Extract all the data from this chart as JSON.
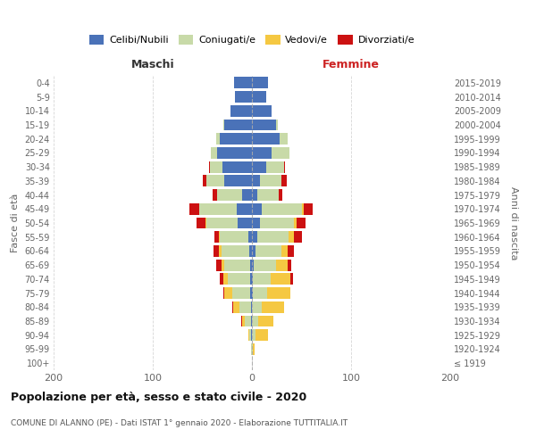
{
  "age_groups": [
    "100+",
    "95-99",
    "90-94",
    "85-89",
    "80-84",
    "75-79",
    "70-74",
    "65-69",
    "60-64",
    "55-59",
    "50-54",
    "45-49",
    "40-44",
    "35-39",
    "30-34",
    "25-29",
    "20-24",
    "15-19",
    "10-14",
    "5-9",
    "0-4"
  ],
  "birth_years": [
    "≤ 1919",
    "1920-1924",
    "1925-1929",
    "1930-1934",
    "1935-1939",
    "1940-1944",
    "1945-1949",
    "1950-1954",
    "1955-1959",
    "1960-1964",
    "1965-1969",
    "1970-1974",
    "1975-1979",
    "1980-1984",
    "1985-1989",
    "1990-1994",
    "1995-1999",
    "2000-2004",
    "2005-2009",
    "2010-2014",
    "2015-2019"
  ],
  "maschi_celibi": [
    0,
    0,
    1,
    1,
    1,
    2,
    2,
    2,
    3,
    4,
    14,
    15,
    10,
    28,
    30,
    35,
    32,
    28,
    22,
    17,
    18
  ],
  "maschi_coniugati": [
    0,
    1,
    2,
    6,
    12,
    18,
    22,
    26,
    28,
    28,
    32,
    38,
    25,
    18,
    12,
    6,
    4,
    1,
    0,
    0,
    0
  ],
  "maschi_vedovi": [
    0,
    0,
    1,
    3,
    6,
    8,
    5,
    3,
    2,
    1,
    1,
    0,
    0,
    0,
    0,
    0,
    0,
    0,
    0,
    0,
    0
  ],
  "maschi_divorziati": [
    0,
    0,
    0,
    1,
    1,
    1,
    3,
    5,
    6,
    5,
    9,
    10,
    5,
    4,
    1,
    0,
    0,
    0,
    0,
    0,
    0
  ],
  "femmine_nubili": [
    0,
    0,
    0,
    0,
    0,
    1,
    1,
    2,
    4,
    5,
    8,
    10,
    5,
    8,
    14,
    20,
    28,
    24,
    20,
    14,
    16
  ],
  "femmine_coniugate": [
    0,
    1,
    4,
    6,
    10,
    14,
    18,
    22,
    26,
    32,
    34,
    40,
    22,
    22,
    18,
    18,
    8,
    2,
    0,
    0,
    0
  ],
  "femmine_vedove": [
    0,
    2,
    12,
    16,
    22,
    24,
    20,
    12,
    6,
    5,
    3,
    2,
    0,
    0,
    0,
    0,
    0,
    0,
    0,
    0,
    0
  ],
  "femmine_divorziate": [
    0,
    0,
    0,
    0,
    0,
    0,
    2,
    4,
    6,
    8,
    9,
    9,
    4,
    5,
    1,
    0,
    0,
    0,
    0,
    0,
    0
  ],
  "color_celibi": "#4a72b8",
  "color_coniugati": "#c8daa8",
  "color_vedovi": "#f5c842",
  "color_divorziati": "#cc1111",
  "title": "Popolazione per età, sesso e stato civile - 2020",
  "subtitle": "COMUNE DI ALANNO (PE) - Dati ISTAT 1° gennaio 2020 - Elaborazione TUTTITALIA.IT",
  "label_maschi": "Maschi",
  "label_femmine": "Femmine",
  "ylabel_left": "Fasce di età",
  "ylabel_right": "Anni di nascita",
  "xlim": 200,
  "legend_labels": [
    "Celibi/Nubili",
    "Coniugati/e",
    "Vedovi/e",
    "Divorziati/e"
  ]
}
